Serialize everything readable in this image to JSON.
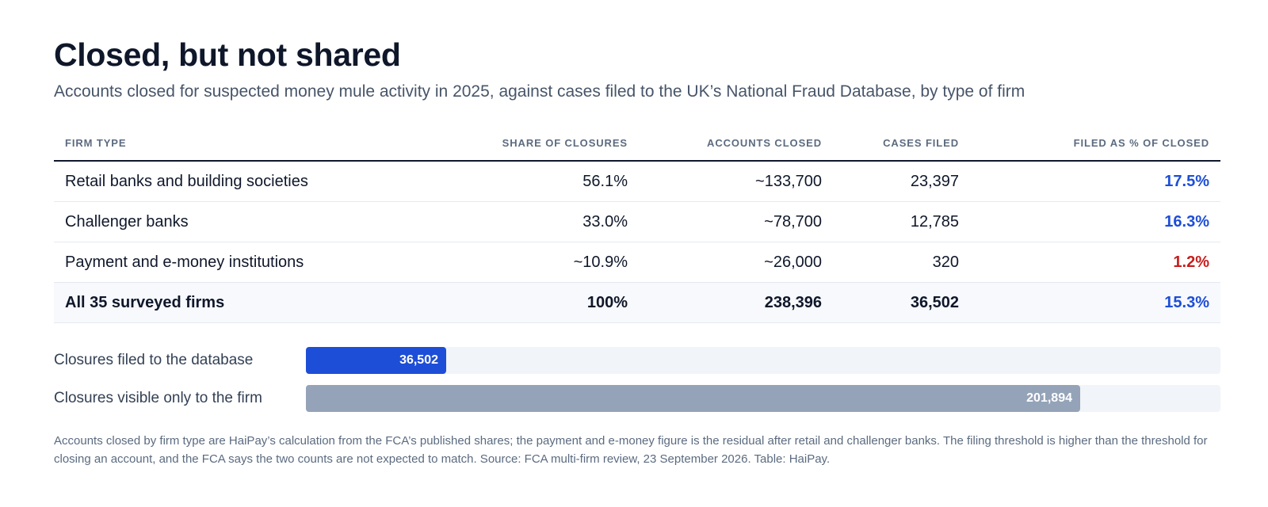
{
  "header": {
    "title": "Closed, but not shared",
    "subtitle": "Accounts closed for suspected money mule activity in 2025, against cases filed to the UK’s National Fraud Database, by type of firm"
  },
  "table": {
    "columns": [
      "Firm type",
      "Share of closures",
      "Accounts closed",
      "Cases filed",
      "Filed as % of closed"
    ],
    "rows": [
      {
        "firm": "Retail banks and building societies",
        "share": "56.1%",
        "closed": "~133,700",
        "filed": "23,397",
        "pct": "17.5%",
        "status": "blue"
      },
      {
        "firm": "Challenger banks",
        "share": "33.0%",
        "closed": "~78,700",
        "filed": "12,785",
        "pct": "16.3%",
        "status": "blue"
      },
      {
        "firm": "Payment and e-money institutions",
        "share": "~10.9%",
        "closed": "~26,000",
        "filed": "320",
        "pct": "1.2%",
        "status": "red"
      }
    ],
    "total": {
      "firm": "All 35 surveyed firms",
      "share": "100%",
      "closed": "238,396",
      "filed": "36,502",
      "pct": "15.3%"
    }
  },
  "bars": {
    "scale_max": 238396,
    "items": [
      {
        "label": "Closures filed to the database",
        "value": 36502,
        "value_label": "36,502",
        "color": "#1d4ed8"
      },
      {
        "label": "Closures visible only to the firm",
        "value": 201894,
        "value_label": "201,894",
        "color": "#94a3b8"
      }
    ]
  },
  "colors": {
    "accent_blue": "#1d4ed8",
    "alert_red": "#c81e1e",
    "muted_gray": "#94a3b8"
  },
  "footnote": "Accounts closed by firm type are HaiPay’s calculation from the FCA’s published shares; the payment and e-money figure is the residual after retail and challenger banks. The filing threshold is higher than the threshold for closing an account, and the FCA says the two counts are not expected to match. Source: FCA multi-firm review, 23 September 2026. Table: HaiPay."
}
